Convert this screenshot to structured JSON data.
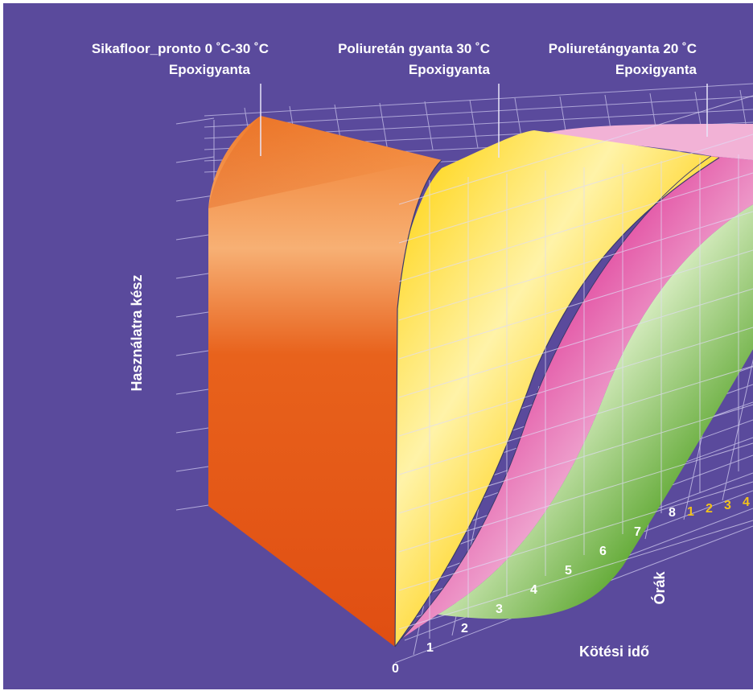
{
  "chart_data": {
    "type": "area",
    "title": "",
    "ylabel": "Használatra kész",
    "xlabel": "Kötési idő",
    "x_unit_label": "Órák",
    "x_ticks_hours": [
      "0",
      "1",
      "2",
      "3",
      "4",
      "5",
      "6",
      "7",
      "8"
    ],
    "x_ticks_days": [
      "1",
      "2",
      "3",
      "4"
    ],
    "series": [
      {
        "name": "Sikafloor_pronto 0 ˚C-30 ˚C",
        "name_line2": "Epoxigyanta",
        "color": "#e8641a",
        "x": [
          0,
          0.5,
          1,
          2,
          3,
          4
        ],
        "y": [
          0,
          92,
          97,
          100,
          100,
          100
        ]
      },
      {
        "name": "Poliuretán gyanta 30 ˚C",
        "name_line2": "Epoxigyanta",
        "color": "#ffd21a",
        "x": [
          0,
          1,
          2,
          3,
          4,
          5,
          6,
          7,
          8
        ],
        "y": [
          0,
          35,
          58,
          74,
          85,
          92,
          96,
          99,
          100
        ]
      },
      {
        "name": "Poliuretángyanta 20 ˚C",
        "name_line2": "Epoxigyanta",
        "color": "#e86ab2",
        "x": [
          0,
          1,
          2,
          3,
          4,
          5,
          6,
          7,
          8
        ],
        "y": [
          0,
          12,
          28,
          47,
          64,
          78,
          89,
          96,
          100
        ]
      },
      {
        "color": "#6cb23c",
        "x": [
          0,
          1,
          2,
          3,
          4,
          5,
          6,
          7,
          8
        ],
        "y": [
          0,
          5,
          14,
          28,
          45,
          62,
          77,
          88,
          95
        ]
      }
    ],
    "ylim": [
      0,
      100
    ],
    "grid": true
  },
  "colors": {
    "background": "#5a4a9c",
    "grid": "#c8c2ea",
    "day_ticks": "#f2c21b"
  }
}
